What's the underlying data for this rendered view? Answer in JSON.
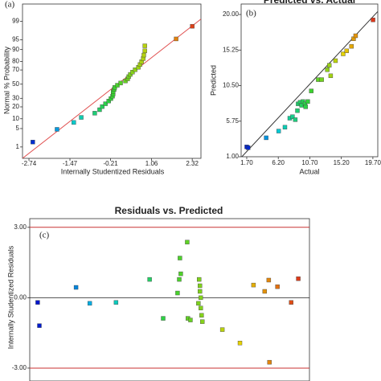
{
  "chart_data": [
    {
      "type": "scatter",
      "panel_label": "(a)",
      "x_label": "Internally Studentized Residuals",
      "y_label": "Normal % Probability",
      "yscale": "probit",
      "x": [
        -2.62,
        -1.87,
        -1.35,
        -1.12,
        -0.7,
        -0.55,
        -0.47,
        -0.37,
        -0.27,
        -0.2,
        -0.15,
        -0.13,
        -0.13,
        -0.1,
        -0.08,
        0.0,
        0.1,
        0.25,
        0.32,
        0.35,
        0.4,
        0.47,
        0.55,
        0.65,
        0.7,
        0.75,
        0.8,
        0.82,
        0.85,
        0.85,
        1.82,
        2.32
      ],
      "values": [
        1.6,
        4.7,
        7.8,
        10.9,
        14.1,
        17.2,
        20.3,
        23.4,
        26.6,
        29.7,
        32.8,
        35.9,
        39.1,
        42.2,
        45.3,
        48.4,
        51.6,
        54.7,
        57.8,
        60.9,
        64.1,
        67.2,
        70.3,
        73.4,
        76.6,
        79.7,
        82.8,
        85.9,
        89.1,
        92.2,
        95.3,
        98.4
      ],
      "colormap": [
        "#0000c8",
        "#00c8e6",
        "#32d232",
        "#e6d200",
        "#dc1e1e"
      ],
      "color_range": [
        -2.94,
        2.59
      ],
      "fit_line": {
        "x": [
          -2.94,
          2.59
        ],
        "y": [
          0.3,
          99.2
        ],
        "color": "#e05050"
      },
      "xlim": [
        -2.94,
        2.59
      ],
      "ylim": [
        0.3,
        99.85
      ],
      "xticks": [
        -2.74,
        -1.47,
        -0.21,
        1.06,
        2.32
      ],
      "yticks": [
        1,
        5,
        10,
        20,
        30,
        50,
        70,
        80,
        90,
        95,
        99
      ]
    },
    {
      "type": "scatter",
      "title": "Predicted vs. Actual",
      "panel_label": "(b)",
      "x_label": "Actual",
      "y_label": "Predicted",
      "x": [
        1.7,
        1.9,
        4.47,
        6.25,
        7.15,
        7.84,
        8.23,
        8.63,
        8.93,
        9.03,
        9.32,
        9.52,
        9.72,
        10.02,
        10.11,
        10.41,
        10.91,
        11.9,
        12.39,
        13.19,
        13.48,
        13.68,
        14.37,
        15.46,
        15.96,
        16.65,
        16.95,
        17.24,
        19.72
      ],
      "values": [
        2.31,
        2.21,
        3.53,
        4.43,
        4.94,
        6.15,
        6.35,
        5.95,
        7.16,
        8.07,
        8.27,
        7.87,
        8.37,
        8.07,
        7.67,
        8.37,
        9.79,
        11.3,
        11.3,
        12.62,
        13.22,
        11.81,
        13.83,
        14.74,
        15.14,
        15.75,
        16.76,
        17.16,
        19.28
      ],
      "colormap": [
        "#0000c8",
        "#00c8e6",
        "#32d232",
        "#e6d200",
        "#dc1e1e"
      ],
      "color_range": [
        0.9,
        20.4
      ],
      "fit_line": {
        "x": [
          0.9,
          20.4
        ],
        "y": [
          0.9,
          20.4
        ],
        "color": "#333333"
      },
      "xlim": [
        0.9,
        20.4
      ],
      "ylim": [
        1.0,
        21.4
      ],
      "xticks": [
        {
          "value": 1.7,
          "label": "1.70"
        },
        {
          "value": 6.2,
          "label": "6.20"
        },
        {
          "value": 10.7,
          "label": "10.70"
        },
        {
          "value": 15.2,
          "label": "15.20"
        },
        {
          "value": 19.7,
          "label": "19.70"
        }
      ],
      "yticks": [
        {
          "value": 1.0,
          "label": "1.00"
        },
        {
          "value": 5.75,
          "label": "5.75"
        },
        {
          "value": 10.5,
          "label": "10.50"
        },
        {
          "value": 15.25,
          "label": "15.25"
        },
        {
          "value": 20.0,
          "label": "20.00"
        }
      ]
    },
    {
      "type": "scatter",
      "title": "Residuals vs. Predicted",
      "panel_label": "(c)",
      "y_label": "Internally Studentized Residuals",
      "x": [
        0.57,
        0.69,
        3.31,
        4.29,
        6.17,
        8.57,
        9.54,
        10.57,
        10.69,
        10.74,
        10.8,
        11.26,
        11.31,
        11.49,
        12.06,
        12.11,
        12.17,
        12.17,
        12.23,
        12.23,
        12.29,
        12.34,
        13.77,
        15.03,
        16.0,
        16.8,
        17.09,
        17.14,
        17.71,
        18.69,
        19.2
      ],
      "values": [
        -0.2,
        -1.19,
        0.44,
        -0.24,
        -0.2,
        0.78,
        -0.88,
        0.2,
        0.78,
        1.69,
        1.02,
        2.37,
        -0.88,
        -0.95,
        -0.24,
        0.78,
        0.51,
        0.27,
        0.0,
        -0.44,
        -0.75,
        -1.02,
        -1.36,
        -1.93,
        0.54,
        0.27,
        0.75,
        -2.75,
        0.47,
        -0.2,
        0.81
      ],
      "colormap": [
        "#0000c8",
        "#00c8e6",
        "#32d232",
        "#e6d200",
        "#dc1e1e"
      ],
      "color_range": [
        0,
        20
      ],
      "limit_lines": [
        3,
        -3
      ],
      "limit_color": "#c83232",
      "center_line": 0,
      "xlim": [
        0,
        20
      ],
      "ylim": [
        -3.55,
        3.37
      ],
      "yticks": [
        {
          "value": 3,
          "label": "3.00"
        },
        {
          "value": 0,
          "label": "0.00"
        },
        {
          "value": -3,
          "label": "-3.00"
        }
      ]
    }
  ]
}
